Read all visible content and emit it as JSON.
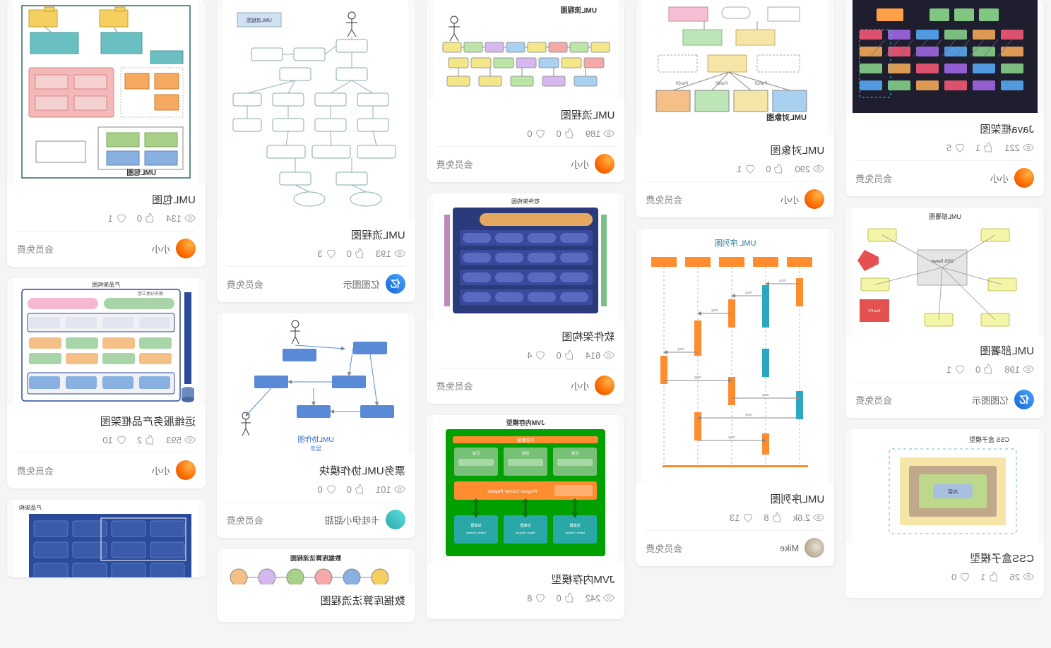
{
  "free_label": "会员免费",
  "cards": [
    {
      "id": "c1",
      "title": "Java框架图",
      "views": "221",
      "likes": "1",
      "hearts": "5",
      "author_name": "小小",
      "avatar": "orange",
      "thumb_bg": "#1e1e2e",
      "thumb_h": 160,
      "style": "dark_arch"
    },
    {
      "id": "c2",
      "title": "UML部署图",
      "views": "198",
      "likes": "0",
      "hearts": "1",
      "author_name": "亿图图示",
      "avatar": "blue",
      "thumb_bg": "#ffffff",
      "thumb_h": 180,
      "style": "deploy"
    },
    {
      "id": "c3",
      "title": "CSS盒子模型",
      "views": "26",
      "likes": "1",
      "hearts": "0",
      "author_name": "",
      "avatar": "",
      "thumb_bg": "#ffffff",
      "thumb_h": 160,
      "style": "css_box",
      "cut": true
    },
    {
      "id": "c4",
      "title": "UML对象图",
      "views": "290",
      "likes": "0",
      "hearts": "1",
      "author_name": "小小",
      "avatar": "orange",
      "thumb_bg": "#ffffff",
      "thumb_h": 190,
      "style": "obj_graph"
    },
    {
      "id": "c5",
      "title": "UML序列图",
      "views": "2.6k",
      "likes": "8",
      "hearts": "13",
      "author_name": "Mike",
      "avatar": "cat",
      "thumb_bg": "#ffffff",
      "thumb_h": 360,
      "style": "sequence"
    },
    {
      "id": "c6",
      "title": "UML流程图",
      "views": "189",
      "likes": "0",
      "hearts": "0",
      "author_name": "小小",
      "avatar": "orange",
      "thumb_bg": "#ffffff",
      "thumb_h": 140,
      "style": "flow_h"
    },
    {
      "id": "c7",
      "title": "软件架构图",
      "views": "614",
      "likes": "0",
      "hearts": "4",
      "author_name": "小小",
      "avatar": "orange",
      "thumb_bg": "#ffffff",
      "thumb_h": 180,
      "style": "blue_arch"
    },
    {
      "id": "c8",
      "title": "JVM内存模型",
      "views": "242",
      "likes": "0",
      "hearts": "8",
      "author_name": "",
      "avatar": "",
      "thumb_bg": "#ffffff",
      "thumb_h": 210,
      "style": "jvm",
      "cut": true
    },
    {
      "id": "c9",
      "title": "UML流程图",
      "views": "193",
      "likes": "0",
      "hearts": "3",
      "author_name": "亿图图示",
      "avatar": "blue",
      "thumb_bg": "#ffffff",
      "thumb_h": 310,
      "style": "flow_v"
    },
    {
      "id": "c10",
      "title": "票务UML协作模块",
      "views": "101",
      "likes": "0",
      "hearts": "0",
      "author_name": "卡哇伊小甜甜",
      "avatar": "cyan",
      "thumb_bg": "#ffffff",
      "thumb_h": 200,
      "style": "collab"
    },
    {
      "id": "c11",
      "title": "数据库算法流程图",
      "views": "",
      "likes": "",
      "hearts": "",
      "author_name": "",
      "avatar": "",
      "thumb_bg": "#ffffff",
      "thumb_h": 50,
      "style": "tree_cut",
      "cut": true,
      "title_only": true
    },
    {
      "id": "c12",
      "title": "UML包图",
      "views": "134",
      "likes": "0",
      "hearts": "1",
      "author_name": "小小",
      "avatar": "orange",
      "thumb_bg": "#ffffff",
      "thumb_h": 260,
      "style": "package"
    },
    {
      "id": "c13",
      "title": "运维服务产品框架图",
      "views": "593",
      "likes": "2",
      "hearts": "10",
      "author_name": "小小",
      "avatar": "orange",
      "thumb_bg": "#ffffff",
      "thumb_h": 180,
      "style": "ops_frame"
    },
    {
      "id": "c14",
      "title": "",
      "views": "",
      "likes": "",
      "hearts": "",
      "author_name": "",
      "avatar": "",
      "thumb_bg": "#ffffff",
      "thumb_h": 110,
      "style": "blue_grid_cut",
      "cut": true,
      "notitle": true
    }
  ],
  "columns": [
    [
      "c1",
      "c2",
      "c3"
    ],
    [
      "c4",
      "c5"
    ],
    [
      "c6",
      "c7",
      "c8"
    ],
    [
      "c9",
      "c10",
      "c11"
    ],
    [
      "c12",
      "c13",
      "c14"
    ]
  ],
  "colors": {
    "dark_arch": {
      "bg": "#211f30",
      "box1": "#8cd98c",
      "box2": "#ff9f46",
      "box3": "#ff5a7a",
      "line": "#6a6a8a",
      "cyan": "#3acfd5",
      "purple": "#a96af0"
    },
    "deploy": {
      "node": "#f5f5a8",
      "server": "#e5e5e5",
      "red": "#e55050",
      "text": "#333"
    },
    "css_box": {
      "margin": "#f5e6a8",
      "border": "#c0a88a",
      "padding": "#bcd88a",
      "content": "#a8c0e0",
      "dash": "#7ab0d0"
    },
    "obj_graph": {
      "pink": "#f5c0d5",
      "yellow": "#f5e6a8",
      "green": "#bce5b8",
      "blue": "#a8d0f0",
      "orange": "#f5c088",
      "line": "#888"
    },
    "sequence": {
      "orange": "#ff8c2e",
      "teal": "#2aa8c0",
      "line": "#bbb"
    },
    "flow_h": {
      "yellow": "#f5e688",
      "green": "#bce5a8",
      "red": "#f5a8a8",
      "blue": "#a8d0f0",
      "purple": "#d5b8f0",
      "line": "#888"
    },
    "blue_arch": {
      "frame": "#2a3a7a",
      "fill": "#3a4a9a",
      "pill": "#5a6ac0",
      "orange": "#e5a860",
      "side_g": "#7ac088",
      "side_p": "#c088c0"
    },
    "jvm": {
      "outer": "#00a000",
      "inner": "#78c078",
      "orange": "#ff8c2e",
      "teal": "#2aa8a8",
      "text": "#fff"
    },
    "flow_v": {
      "box": "#ffffff",
      "line": "#888",
      "header": "#cfe2f3",
      "title": "#333"
    },
    "collab": {
      "box": "#5a8ad5",
      "line": "#5a8ad5",
      "text": "#2a6ad5"
    },
    "package": {
      "border": "#2a6a6a",
      "yellow": "#f5d060",
      "teal": "#6ac0c0",
      "pink": "#f5b8b8",
      "orange": "#f5a860",
      "green": "#a8d088",
      "blue": "#88b0e0"
    },
    "ops_frame": {
      "border": "#2a4a9a",
      "green": "#a8d5a8",
      "pink": "#f5b8d0",
      "orange": "#f5c088",
      "blue": "#88b0e0",
      "cyl": "#6a8ac0"
    },
    "blue_grid": {
      "bg": "#2a4a9a",
      "cell": "#3a5aaa",
      "border": "#5a7aca"
    }
  },
  "labels": {
    "jvm_top": "JVM内存模型",
    "jvm_inner": "内存数据",
    "seq_top": "UML 序列图",
    "deploy_top": "UML部署图",
    "collab_caption": "UML协作图",
    "collab_sub": "显示",
    "blue_arch_top": "软件架构图",
    "css_top": "CSS 盒子模型",
    "ops_top": "产品架构图",
    "ops_sub": "模块分类工程",
    "blue_grid_top": "产品架构",
    "tree_top": "数据库算法流程图"
  }
}
